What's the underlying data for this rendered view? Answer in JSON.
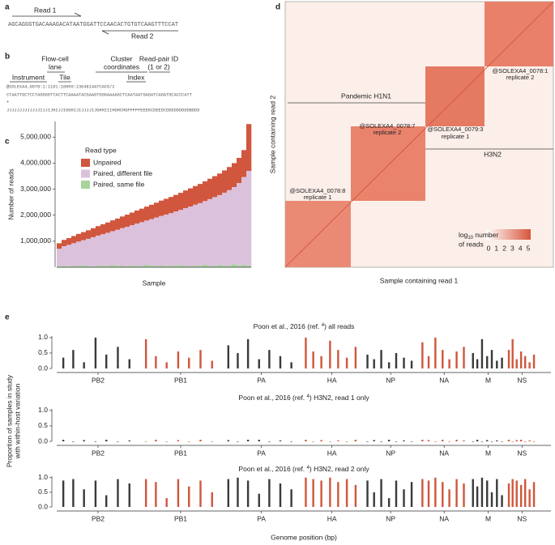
{
  "panel_labels": [
    "a",
    "b",
    "c",
    "d",
    "e"
  ],
  "panel_a": {
    "read1": "Read 1",
    "read2": "Read 2",
    "sequence": "AGCAGGGTGACAAAGACATAATGGATTCCAACACTGTGTCAAGTTTCCAT"
  },
  "panel_b": {
    "flowcell_lane": [
      "Flow-cell",
      "lane"
    ],
    "cluster_coordinates": [
      "Cluster",
      "coordinates"
    ],
    "read_pair_id": [
      "Read-pair ID",
      "(1 or 2)"
    ],
    "instrument": "Instrument",
    "tile": "Tile",
    "index": "Index",
    "header": "@SOLEXA4_0078:1:1101:10000:1364814ATCACG/2",
    "sequence": "CTAATTGCTCCTAGGGGTTACTTCAAAATACGAAGTGGGAAAAGCTCAATAATGAGATCAGATGCACCCATT",
    "plus": "+",
    "quality": "JJJJJJJJJJJJJIJJIJHIJJIGGHIJIJJJJIJGHHIIIHGHCHGFFFFFEEEKCDEEDCDDDDDDDDDBDDD"
  },
  "panel_d": {
    "xlabel": "Sample containing read 1",
    "ylabel": "Sample containing read 2",
    "group_labels": [
      "Pandemic H1N1",
      "H3N2"
    ],
    "blocks": [
      [
        "@SOLEXA4_0078:8",
        "replicate 1"
      ],
      [
        "@SOLEXA4_0078:7",
        "replicate 2"
      ],
      [
        "@SOLEXA4_0079:3",
        "replicate 1"
      ],
      [
        "@SOLEXA4_0078:1",
        "replicate 2"
      ]
    ],
    "colorbar_title": [
      "log",
      "10",
      " number"
    ],
    "colorbar_title_line2": "of reads",
    "colorbar_ticks": [
      0,
      1,
      2,
      3,
      4,
      5
    ],
    "colorbar_colors": [
      "#ffffff",
      "#d8553b"
    ]
  },
  "panel_e": {
    "ylabel": [
      "Proportion of samples in study",
      "with within-host variation"
    ],
    "xlabel": "Genome position (bp)"
  },
  "chart_data": [
    {
      "type": "bar",
      "stacked": true,
      "ylabel": "Number of reads",
      "xlabel": "Sample",
      "legend_title": "Read type",
      "categories": [
        null,
        null,
        null,
        null,
        null,
        null,
        null,
        null,
        null,
        null,
        null,
        null,
        null,
        null,
        null,
        null,
        null,
        null,
        null,
        null,
        null,
        null,
        null,
        null,
        null,
        null,
        null,
        null,
        null,
        null,
        null,
        null,
        null,
        null,
        null,
        null,
        null,
        null,
        null,
        null
      ],
      "series": [
        {
          "name": "Unpaired",
          "color": "#d0563d",
          "values": [
            212000,
            241000,
            258000,
            276000,
            294000,
            310000,
            327000,
            345000,
            363000,
            380000,
            396000,
            414000,
            430000,
            448000,
            465000,
            483000,
            501000,
            518000,
            536000,
            552000,
            570000,
            589000,
            605000,
            621000,
            639000,
            658000,
            678000,
            697000,
            718000,
            736000,
            759000,
            782000,
            805000,
            828000,
            856000,
            886000,
            920000,
            966000,
            1035000,
            1800000
          ]
        },
        {
          "name": "Paired, different file",
          "color": "#dcc1dd",
          "values": [
            668000,
            754000,
            827000,
            864000,
            941000,
            970000,
            1043000,
            1115000,
            1152000,
            1215000,
            1279000,
            1306000,
            1390000,
            1442000,
            1515000,
            1547000,
            1624000,
            1687000,
            1704000,
            1788000,
            1860000,
            1896000,
            1970000,
            2014000,
            2096000,
            2117000,
            2212000,
            2283000,
            2332000,
            2409000,
            2446000,
            2558000,
            2645000,
            2692000,
            2799000,
            2909000,
            2960000,
            3164000,
            3375000,
            3640000
          ]
        },
        {
          "name": "Paired, same file",
          "color": "#a8d39a",
          "values": [
            40000,
            55000,
            35000,
            60000,
            45000,
            70000,
            50000,
            40000,
            65000,
            55000,
            45000,
            80000,
            50000,
            60000,
            40000,
            70000,
            55000,
            45000,
            90000,
            60000,
            50000,
            75000,
            55000,
            65000,
            45000,
            85000,
            60000,
            50000,
            70000,
            55000,
            95000,
            60000,
            50000,
            80000,
            65000,
            55000,
            120000,
            70000,
            90000,
            60000
          ]
        }
      ],
      "ylim": [
        0,
        5600000
      ],
      "yticks": [
        {
          "value": 1000000,
          "label": "1,000,000"
        },
        {
          "value": 2000000,
          "label": "2,000,000"
        },
        {
          "value": 3000000,
          "label": "3,000,000"
        },
        {
          "value": 4000000,
          "label": "4,000,000"
        },
        {
          "value": 5000000,
          "label": "5,000,000"
        }
      ]
    },
    {
      "type": "bar",
      "title": [
        "Poon et al., 2016 (ref. ",
        "4",
        ") all reads"
      ],
      "alternating_colors": [
        "#3a3a3a",
        "#d0563d"
      ],
      "x": [
        187,
        468,
        773,
        1100,
        1405,
        1732,
        2060,
        2528,
        2809,
        3114,
        3441,
        3746,
        4073,
        4401,
        4861,
        5129,
        5419,
        5732,
        6022,
        6334,
        6647,
        7056,
        7267,
        7496,
        7743,
        7972,
        8219,
        8466,
        8802,
        8990,
        9193,
        9413,
        9616,
        9835,
        10054,
        10359,
        10535,
        10726,
        10931,
        11122,
        11328,
        11533,
        11791,
        11914,
        12048,
        12192,
        12325,
        12469,
        12613,
        12807,
        12914,
        13030,
        13154,
        13270,
        13395,
        13519
      ],
      "values": [
        0.35,
        0.6,
        0.2,
        1.0,
        0.45,
        0.7,
        0.3,
        0.95,
        0.4,
        0.2,
        0.55,
        0.35,
        0.6,
        0.25,
        0.75,
        0.5,
        0.95,
        0.3,
        0.6,
        0.4,
        0.2,
        1.0,
        0.55,
        0.4,
        0.9,
        0.6,
        0.35,
        0.7,
        0.45,
        0.3,
        0.6,
        0.2,
        0.5,
        0.35,
        0.25,
        0.85,
        0.4,
        1.0,
        0.6,
        0.3,
        0.55,
        0.7,
        0.5,
        0.3,
        0.95,
        0.4,
        0.6,
        0.25,
        0.35,
        0.6,
        0.95,
        0.3,
        0.55,
        0.4,
        0.2,
        0.45
      ],
      "xlim": [
        0,
        14000
      ],
      "xticks": [
        {
          "value": 1170,
          "label": "PB2"
        },
        {
          "value": 3511,
          "label": "PB1"
        },
        {
          "value": 5798,
          "label": "PA"
        },
        {
          "value": 7796,
          "label": "HA"
        },
        {
          "value": 9459,
          "label": "NP"
        },
        {
          "value": 10975,
          "label": "NA"
        },
        {
          "value": 12222,
          "label": "M"
        },
        {
          "value": 13181,
          "label": "NS"
        }
      ],
      "ylim": [
        0,
        1.05
      ],
      "yticks": [
        {
          "value": 0,
          "label": "0.0"
        },
        {
          "value": 0.5,
          "label": "0.5"
        },
        {
          "value": 1,
          "label": "1.0"
        }
      ]
    },
    {
      "type": "bar",
      "title": [
        "Poon et al., 2016 (ref. ",
        "4",
        ") H3N2, read 1 only"
      ],
      "alternating_colors": [
        "#3a3a3a",
        "#d0563d"
      ],
      "x": [
        187,
        468,
        773,
        1100,
        1405,
        1732,
        2060,
        2528,
        2809,
        3114,
        3441,
        3746,
        4073,
        4401,
        4861,
        5129,
        5419,
        5732,
        6022,
        6334,
        6647,
        7056,
        7267,
        7496,
        7743,
        7972,
        8219,
        8466,
        8802,
        8990,
        9193,
        9413,
        9616,
        9835,
        10054,
        10359,
        10535,
        10726,
        10931,
        11122,
        11328,
        11533,
        11791,
        11914,
        12048,
        12192,
        12325,
        12469,
        12613,
        12807,
        12914,
        13030,
        13154,
        13270,
        13395,
        13519
      ],
      "values": [
        0.05,
        0,
        0.04,
        0,
        0.05,
        0,
        0.03,
        0,
        0.05,
        0,
        0.04,
        0,
        0.05,
        0,
        0.04,
        0,
        0.05,
        0.05,
        0,
        0.03,
        0,
        0.05,
        0,
        0.04,
        0,
        0.03,
        0,
        0.05,
        0,
        0.04,
        0,
        0.05,
        0,
        0.03,
        0,
        0.05,
        0.04,
        0,
        0.05,
        0,
        0.05,
        0.03,
        0,
        0.05,
        0,
        0.04,
        0,
        0.03,
        0,
        0.05,
        0,
        0.04,
        0.05,
        0,
        0.03,
        0
      ],
      "xlim": [
        0,
        14000
      ],
      "xticks": [
        {
          "value": 1170,
          "label": "PB2"
        },
        {
          "value": 3511,
          "label": "PB1"
        },
        {
          "value": 5798,
          "label": "PA"
        },
        {
          "value": 7796,
          "label": "HA"
        },
        {
          "value": 9459,
          "label": "NP"
        },
        {
          "value": 10975,
          "label": "NA"
        },
        {
          "value": 12222,
          "label": "M"
        },
        {
          "value": 13181,
          "label": "NS"
        }
      ],
      "ylim": [
        0,
        1.05
      ],
      "yticks": [
        {
          "value": 0,
          "label": "0.0"
        },
        {
          "value": 0.5,
          "label": "0.5"
        },
        {
          "value": 1,
          "label": "1.0"
        }
      ]
    },
    {
      "type": "bar",
      "title": [
        "Poon et al., 2016 (ref. ",
        "4",
        ") H3N2, read 2 only"
      ],
      "alternating_colors": [
        "#3a3a3a",
        "#d0563d"
      ],
      "x": [
        187,
        468,
        773,
        1100,
        1405,
        1732,
        2060,
        2528,
        2809,
        3114,
        3441,
        3746,
        4073,
        4401,
        4861,
        5129,
        5419,
        5732,
        6022,
        6334,
        6647,
        7056,
        7267,
        7496,
        7743,
        7972,
        8219,
        8466,
        8802,
        8990,
        9193,
        9413,
        9616,
        9835,
        10054,
        10359,
        10535,
        10726,
        10931,
        11122,
        11328,
        11533,
        11791,
        11914,
        12048,
        12192,
        12325,
        12469,
        12613,
        12807,
        12914,
        13030,
        13154,
        13270,
        13395,
        13519
      ],
      "values": [
        0.9,
        0.95,
        0.6,
        0.9,
        0.4,
        0.95,
        0.8,
        0.95,
        0.85,
        0.3,
        0.95,
        0.7,
        0.9,
        0.5,
        0.95,
        1.0,
        0.9,
        0.45,
        0.95,
        0.8,
        0.6,
        1.0,
        0.95,
        0.9,
        1.0,
        0.85,
        0.95,
        0.75,
        0.9,
        0.5,
        0.95,
        0.3,
        0.9,
        0.6,
        0.85,
        0.95,
        0.9,
        1.0,
        0.85,
        0.6,
        0.95,
        0.8,
        0.95,
        0.7,
        1.0,
        0.9,
        0.5,
        0.95,
        0.4,
        0.8,
        0.95,
        0.9,
        0.75,
        0.95,
        0.6,
        0.85
      ],
      "xlim": [
        0,
        14000
      ],
      "xticks": [
        {
          "value": 1170,
          "label": "PB2"
        },
        {
          "value": 3511,
          "label": "PB1"
        },
        {
          "value": 5798,
          "label": "PA"
        },
        {
          "value": 7796,
          "label": "HA"
        },
        {
          "value": 9459,
          "label": "NP"
        },
        {
          "value": 10975,
          "label": "NA"
        },
        {
          "value": 12222,
          "label": "M"
        },
        {
          "value": 13181,
          "label": "NS"
        }
      ],
      "ylim": [
        0,
        1.05
      ],
      "yticks": [
        {
          "value": 0,
          "label": "0.0"
        },
        {
          "value": 0.5,
          "label": "0.5"
        },
        {
          "value": 1,
          "label": "1.0"
        }
      ]
    }
  ]
}
